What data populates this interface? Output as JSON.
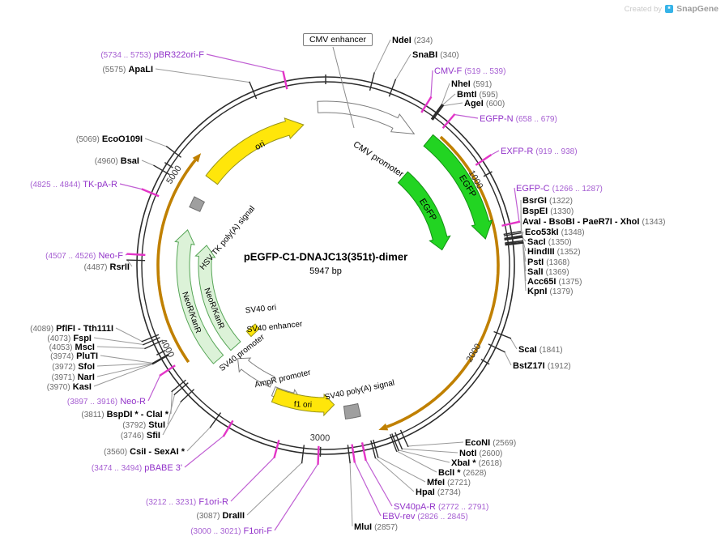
{
  "watermark": {
    "prefix": "Created by",
    "brand": "SnapGene",
    "logo_glyph": "*"
  },
  "plasmid": {
    "name": "pEGFP-C1-DNAJC13(351t)-dimer",
    "size": "5947 bp"
  },
  "scale_ticks": [
    "1000",
    "2000",
    "3000",
    "4000",
    "5000"
  ],
  "colors": {
    "primer_text": "#9233c9",
    "primer_tick": "#e335c7",
    "enzyme_text": "#000000",
    "egfp_green": "#22d422",
    "pale_green": "#dcf2d8",
    "yellow": "#ffe60a",
    "gold_arc": "#c08000",
    "gray_feature": "#9f9f9f"
  },
  "features": {
    "cmv_enhancer": "CMV enhancer",
    "cmv_promoter": "CMV promoter",
    "egfp_outer": "EGFP",
    "egfp_inner": "EGFP",
    "ori": "ori",
    "hsv_tk_polya": "HSV TK poly(A) signal",
    "neor_kanr_outer": "NeoR/KanR",
    "neor_kanr_inner": "NeoR/KanR",
    "sv40_ori": "SV40 ori",
    "sv40_enhancer": "SV40 enhancer",
    "sv40_promoter": "SV40 promoter",
    "ampr_promoter": "AmpR promoter",
    "f1_ori": "f1 ori",
    "sv40_polya": "SV40 poly(A) signal"
  },
  "sites": [
    {
      "name": "NdeI",
      "pos": "(234)",
      "kind": "enzyme"
    },
    {
      "name": "SnaBI",
      "pos": "(340)",
      "kind": "enzyme"
    },
    {
      "name": "CMV-F",
      "pos": "(519 .. 539)",
      "kind": "primer"
    },
    {
      "name": "NheI",
      "pos": "(591)",
      "kind": "enzyme"
    },
    {
      "name": "BmtI",
      "pos": "(595)",
      "kind": "enzyme"
    },
    {
      "name": "AgeI",
      "pos": "(600)",
      "kind": "enzyme"
    },
    {
      "name": "EGFP-N",
      "pos": "(658 .. 679)",
      "kind": "primer"
    },
    {
      "name": "EXFP-R",
      "pos": "(919 .. 938)",
      "kind": "primer"
    },
    {
      "name": "EGFP-C",
      "pos": "(1266 .. 1287)",
      "kind": "primer"
    },
    {
      "name": "BsrGI",
      "pos": "(1322)",
      "kind": "enzyme"
    },
    {
      "name": "BspEI",
      "pos": "(1330)",
      "kind": "enzyme"
    },
    {
      "name": "AvaI - BsoBI - PaeR7I - XhoI",
      "pos": "(1343)",
      "kind": "enzyme"
    },
    {
      "name": "Eco53kI",
      "pos": "(1348)",
      "kind": "enzyme"
    },
    {
      "name": "SacI",
      "pos": "(1350)",
      "kind": "enzyme"
    },
    {
      "name": "HindIII",
      "pos": "(1352)",
      "kind": "enzyme"
    },
    {
      "name": "PstI",
      "pos": "(1368)",
      "kind": "enzyme"
    },
    {
      "name": "SalI",
      "pos": "(1369)",
      "kind": "enzyme"
    },
    {
      "name": "Acc65I",
      "pos": "(1375)",
      "kind": "enzyme"
    },
    {
      "name": "KpnI",
      "pos": "(1379)",
      "kind": "enzyme"
    },
    {
      "name": "ScaI",
      "pos": "(1841)",
      "kind": "enzyme"
    },
    {
      "name": "BstZ17I",
      "pos": "(1912)",
      "kind": "enzyme"
    },
    {
      "name": "EcoNI",
      "pos": "(2569)",
      "kind": "enzyme"
    },
    {
      "name": "NotI",
      "pos": "(2600)",
      "kind": "enzyme"
    },
    {
      "name": "XbaI *",
      "pos": "(2618)",
      "kind": "enzyme"
    },
    {
      "name": "BclI *",
      "pos": "(2628)",
      "kind": "enzyme"
    },
    {
      "name": "MfeI",
      "pos": "(2721)",
      "kind": "enzyme"
    },
    {
      "name": "HpaI",
      "pos": "(2734)",
      "kind": "enzyme"
    },
    {
      "name": "SV40pA-R",
      "pos": "(2772 .. 2791)",
      "kind": "primer"
    },
    {
      "name": "EBV-rev",
      "pos": "(2826 .. 2845)",
      "kind": "primer"
    },
    {
      "name": "MluI",
      "pos": "(2857)",
      "kind": "enzyme"
    },
    {
      "name": "F1ori-F",
      "pos": "(3000 .. 3021)",
      "kind": "primer"
    },
    {
      "name": "DraIII",
      "pos": "(3087)",
      "kind": "enzyme"
    },
    {
      "name": "F1ori-R",
      "pos": "(3212 .. 3231)",
      "kind": "primer"
    },
    {
      "name": "pBABE 3'",
      "pos": "(3474 .. 3494)",
      "kind": "primer"
    },
    {
      "name": "CsiI - SexAI *",
      "pos": "(3560)",
      "kind": "enzyme"
    },
    {
      "name": "SfiI",
      "pos": "(3746)",
      "kind": "enzyme"
    },
    {
      "name": "StuI",
      "pos": "(3792)",
      "kind": "enzyme"
    },
    {
      "name": "BspDI * - ClaI *",
      "pos": "(3811)",
      "kind": "enzyme"
    },
    {
      "name": "Neo-R",
      "pos": "(3897 .. 3916)",
      "kind": "primer"
    },
    {
      "name": "KasI",
      "pos": "(3970)",
      "kind": "enzyme"
    },
    {
      "name": "NarI",
      "pos": "(3971)",
      "kind": "enzyme"
    },
    {
      "name": "SfoI",
      "pos": "(3972)",
      "kind": "enzyme"
    },
    {
      "name": "PluTI",
      "pos": "(3974)",
      "kind": "enzyme"
    },
    {
      "name": "MscI",
      "pos": "(4053)",
      "kind": "enzyme"
    },
    {
      "name": "FspI",
      "pos": "(4073)",
      "kind": "enzyme"
    },
    {
      "name": "PflFI - Tth111I",
      "pos": "(4089)",
      "kind": "enzyme"
    },
    {
      "name": "RsrII",
      "pos": "(4487)",
      "kind": "enzyme"
    },
    {
      "name": "Neo-F",
      "pos": "(4507 .. 4526)",
      "kind": "primer"
    },
    {
      "name": "TK-pA-R",
      "pos": "(4825 .. 4844)",
      "kind": "primer"
    },
    {
      "name": "BsaI",
      "pos": "(4960)",
      "kind": "enzyme"
    },
    {
      "name": "EcoO109I",
      "pos": "(5069)",
      "kind": "enzyme"
    },
    {
      "name": "ApaLI",
      "pos": "(5575)",
      "kind": "enzyme"
    },
    {
      "name": "pBR322ori-F",
      "pos": "(5734 .. 5753)",
      "kind": "primer"
    }
  ]
}
